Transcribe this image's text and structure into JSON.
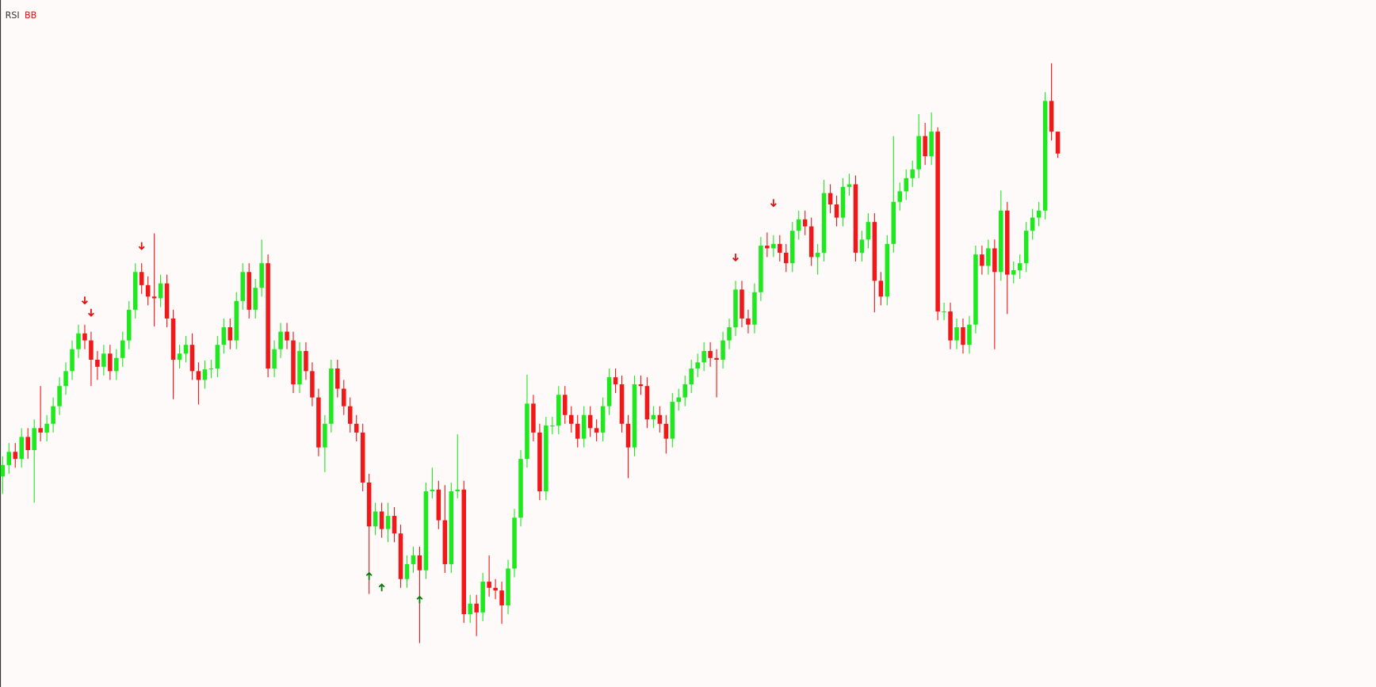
{
  "chart_data": {
    "type": "candlestick",
    "indicators": [
      "RSI",
      "BB"
    ],
    "indicator_colors": [
      "#333333",
      "#e01010"
    ],
    "up_color": "#1ee81e",
    "down_color": "#f01818",
    "ylim": [
      0,
      783
    ],
    "open": [
      240,
      253,
      268,
      260,
      285,
      270,
      295,
      290,
      300,
      320,
      343,
      360,
      385,
      403,
      395,
      373,
      365,
      380,
      360,
      375,
      395,
      430,
      473,
      458,
      445,
      443,
      460,
      420,
      373,
      380,
      390,
      360,
      350,
      362,
      363,
      390,
      410,
      395,
      440,
      473,
      430,
      455,
      483,
      363,
      385,
      405,
      395,
      345,
      383,
      360,
      330,
      273,
      300,
      363,
      340,
      320,
      300,
      290,
      233,
      183,
      200,
      180,
      195,
      175,
      123,
      140,
      150,
      133,
      223,
      225,
      190,
      140,
      223,
      225,
      83,
      95,
      85,
      120,
      113,
      110,
      93,
      135,
      193,
      260,
      323,
      290,
      223,
      298,
      298,
      333,
      310,
      300,
      283,
      310,
      295,
      290,
      320,
      353,
      345,
      300,
      273,
      345,
      343,
      305,
      310,
      300,
      283,
      325,
      330,
      345,
      363,
      370,
      383,
      375,
      373,
      395,
      410,
      453,
      420,
      413,
      450,
      503,
      500,
      505,
      495,
      483,
      520,
      533,
      525,
      490,
      495,
      563,
      550,
      535,
      570,
      573,
      495,
      510,
      530,
      463,
      445,
      505,
      553,
      565,
      580,
      590,
      628,
      605,
      633,
      428,
      428,
      395,
      410,
      390,
      413,
      493,
      480,
      500,
      473,
      543,
      470,
      475,
      483,
      520,
      535,
      543,
      668,
      633
    ],
    "high": [
      263,
      278,
      278,
      295,
      295,
      305,
      343,
      310,
      330,
      353,
      370,
      395,
      413,
      413,
      405,
      383,
      390,
      390,
      385,
      405,
      440,
      483,
      483,
      468,
      517,
      470,
      470,
      430,
      390,
      400,
      403,
      370,
      372,
      373,
      400,
      420,
      420,
      450,
      483,
      483,
      465,
      510,
      493,
      395,
      415,
      415,
      405,
      393,
      393,
      370,
      340,
      310,
      373,
      373,
      350,
      330,
      310,
      300,
      243,
      210,
      210,
      210,
      205,
      185,
      150,
      160,
      160,
      233,
      250,
      235,
      230,
      233,
      288,
      235,
      105,
      105,
      130,
      150,
      123,
      120,
      145,
      203,
      270,
      356,
      333,
      300,
      308,
      308,
      343,
      343,
      320,
      310,
      320,
      320,
      305,
      330,
      363,
      363,
      355,
      310,
      355,
      355,
      353,
      320,
      320,
      310,
      335,
      340,
      355,
      373,
      380,
      393,
      393,
      385,
      405,
      420,
      463,
      463,
      430,
      460,
      513,
      518,
      515,
      515,
      505,
      530,
      543,
      543,
      535,
      505,
      578,
      573,
      560,
      580,
      585,
      583,
      520,
      540,
      540,
      473,
      515,
      628,
      575,
      590,
      600,
      653,
      643,
      655,
      638,
      438,
      438,
      420,
      420,
      423,
      503,
      503,
      510,
      510,
      566,
      553,
      485,
      493,
      530,
      545,
      553,
      678,
      711,
      633
    ],
    "low": [
      220,
      243,
      250,
      250,
      260,
      210,
      280,
      280,
      290,
      310,
      333,
      350,
      375,
      385,
      343,
      350,
      355,
      350,
      350,
      365,
      385,
      420,
      448,
      435,
      411,
      433,
      410,
      328,
      363,
      370,
      350,
      322,
      340,
      352,
      353,
      380,
      385,
      385,
      430,
      420,
      420,
      445,
      353,
      353,
      375,
      385,
      335,
      335,
      350,
      320,
      263,
      245,
      290,
      330,
      310,
      290,
      280,
      223,
      106,
      173,
      170,
      165,
      165,
      113,
      113,
      130,
      50,
      123,
      215,
      180,
      130,
      130,
      215,
      73,
      73,
      58,
      75,
      103,
      100,
      72,
      83,
      125,
      183,
      250,
      280,
      213,
      213,
      288,
      288,
      300,
      290,
      273,
      273,
      285,
      280,
      280,
      310,
      335,
      290,
      238,
      263,
      333,
      295,
      295,
      290,
      266,
      273,
      315,
      320,
      335,
      353,
      360,
      365,
      330,
      363,
      385,
      400,
      410,
      403,
      403,
      440,
      490,
      490,
      485,
      473,
      473,
      510,
      515,
      480,
      470,
      485,
      540,
      525,
      525,
      560,
      485,
      485,
      500,
      427,
      435,
      435,
      495,
      543,
      555,
      570,
      580,
      595,
      595,
      418,
      418,
      385,
      385,
      380,
      380,
      403,
      470,
      470,
      385,
      463,
      425,
      460,
      465,
      473,
      510,
      525,
      533,
      623,
      603
    ],
    "close": [
      253,
      268,
      260,
      285,
      270,
      295,
      290,
      300,
      320,
      343,
      360,
      385,
      403,
      395,
      373,
      365,
      380,
      360,
      375,
      395,
      430,
      473,
      458,
      445,
      443,
      460,
      420,
      373,
      380,
      390,
      360,
      350,
      362,
      363,
      390,
      410,
      395,
      440,
      473,
      430,
      455,
      483,
      363,
      385,
      405,
      395,
      345,
      383,
      360,
      330,
      273,
      300,
      363,
      340,
      320,
      300,
      290,
      233,
      183,
      200,
      180,
      195,
      175,
      123,
      140,
      150,
      133,
      223,
      225,
      190,
      140,
      223,
      225,
      83,
      95,
      85,
      120,
      113,
      110,
      93,
      135,
      193,
      260,
      323,
      290,
      223,
      298,
      298,
      333,
      310,
      300,
      283,
      310,
      295,
      290,
      320,
      353,
      345,
      300,
      273,
      345,
      343,
      305,
      310,
      300,
      283,
      325,
      330,
      345,
      363,
      370,
      383,
      375,
      373,
      395,
      410,
      453,
      420,
      413,
      450,
      503,
      500,
      505,
      495,
      483,
      520,
      533,
      525,
      490,
      495,
      563,
      550,
      535,
      570,
      573,
      495,
      510,
      530,
      463,
      445,
      505,
      553,
      565,
      580,
      590,
      628,
      605,
      633,
      428,
      428,
      395,
      410,
      390,
      413,
      493,
      480,
      500,
      473,
      543,
      470,
      475,
      483,
      520,
      535,
      543,
      668,
      633,
      608
    ],
    "signals": [
      {
        "index": 13,
        "direction": "down",
        "value": 441,
        "color": "#e01010"
      },
      {
        "index": 14,
        "direction": "down",
        "value": 427,
        "color": "#e01010"
      },
      {
        "index": 22,
        "direction": "down",
        "value": 503,
        "color": "#e01010"
      },
      {
        "index": 116,
        "direction": "down",
        "value": 490,
        "color": "#e01010"
      },
      {
        "index": 122,
        "direction": "down",
        "value": 552,
        "color": "#e01010"
      },
      {
        "index": 58,
        "direction": "up",
        "value": 126,
        "color": "#0a7a0a"
      },
      {
        "index": 60,
        "direction": "up",
        "value": 113,
        "color": "#0a7a0a"
      },
      {
        "index": 66,
        "direction": "up",
        "value": 99,
        "color": "#0a7a0a"
      }
    ]
  }
}
